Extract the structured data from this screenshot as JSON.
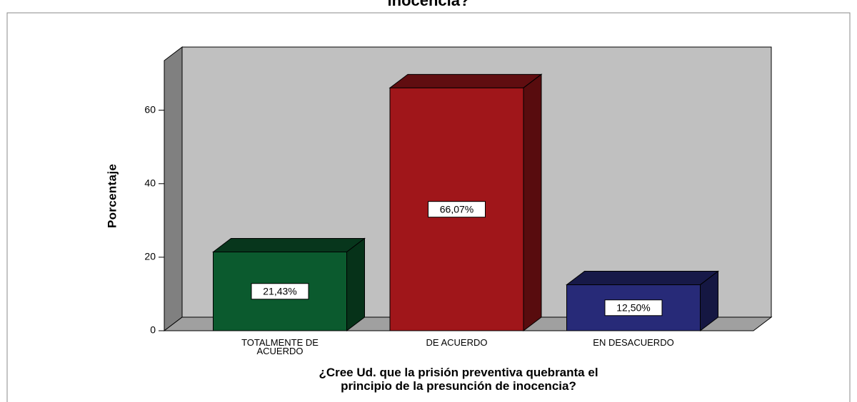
{
  "chart_data": {
    "type": "bar3d",
    "title": "inocencia?",
    "y_label": "Porcentaje",
    "x_label": "¿Cree Ud. que la prisión preventiva quebranta el principio de la presunción de inocencia?",
    "categories": [
      "TOTALMENTE DE ACUERDO",
      "DE ACUERDO",
      "EN DESACUERDO"
    ],
    "values": [
      21.43,
      66.07,
      12.5
    ],
    "value_labels": [
      "21,43%",
      "66,07%",
      "12,50%"
    ],
    "colors": [
      "#0b5a2e",
      "#a0161a",
      "#272a78"
    ],
    "ylim": [
      0,
      73.5
    ],
    "yticks": [
      0,
      20,
      40,
      60
    ]
  }
}
